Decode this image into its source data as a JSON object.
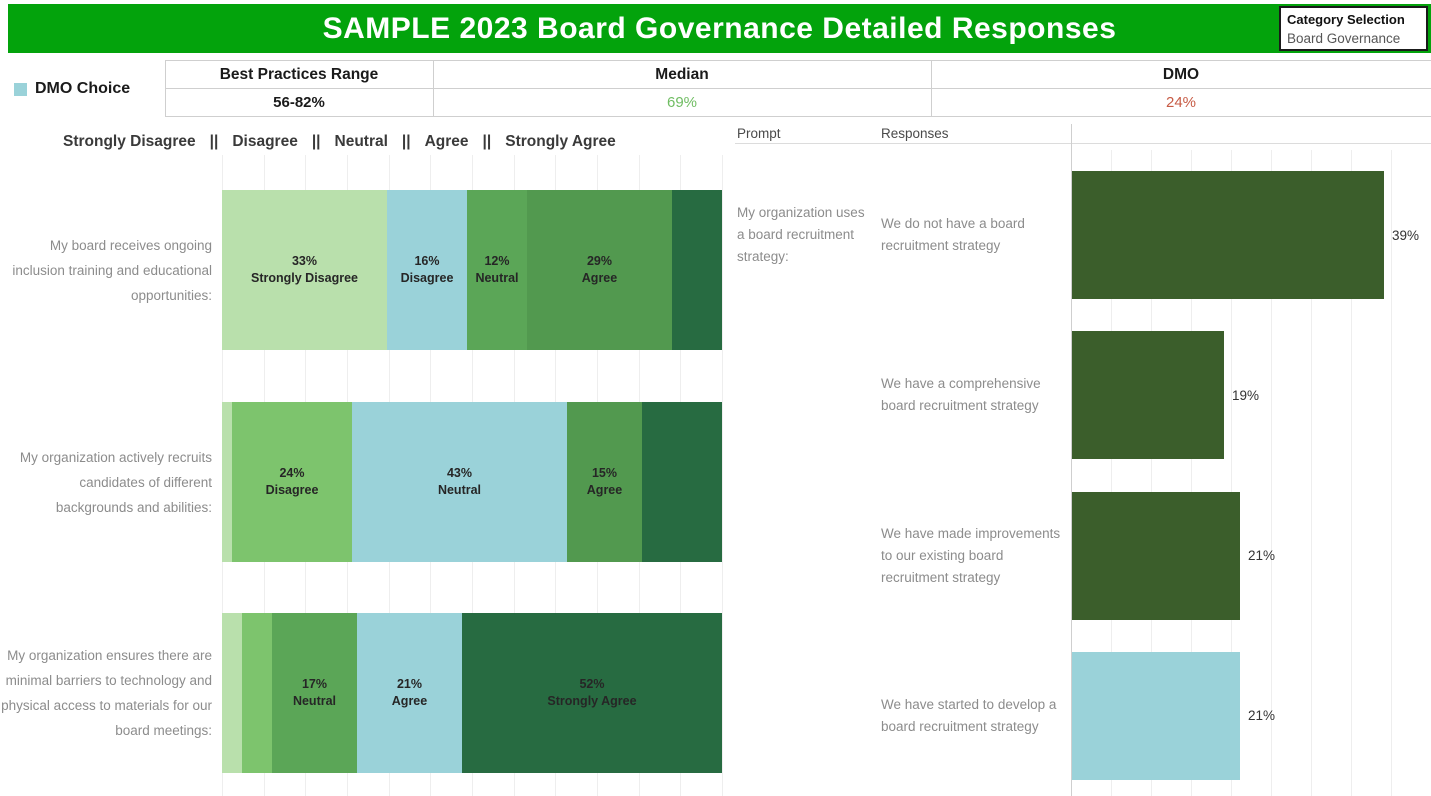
{
  "header": {
    "title": "SAMPLE 2023 Board Governance Detailed Responses",
    "bg_color": "#03a30c",
    "category_selector": {
      "label": "Category Selection",
      "value": "Board Governance"
    }
  },
  "legend": {
    "dmo_choice_label": "DMO Choice",
    "dmo_color": "#9ad2d9"
  },
  "summary_table": {
    "columns": [
      {
        "header": "Best Practices Range",
        "value": "56-82%",
        "value_color": "#1a1a1a",
        "value_bold": true
      },
      {
        "header": "Median",
        "value": "69%",
        "value_color": "#70bd63",
        "value_bold": false
      },
      {
        "header": "DMO",
        "value": "24%",
        "value_color": "#c75b45",
        "value_bold": false
      }
    ]
  },
  "likert_header": {
    "categories": [
      "Strongly Disagree",
      "Disagree",
      "Neutral",
      "Agree",
      "Strongly Agree"
    ],
    "separator": "||"
  },
  "right_header": {
    "prompt": "Prompt",
    "responses": "Responses"
  },
  "chart_data": [
    {
      "type": "bar",
      "subtype": "stacked-horizontal-likert",
      "categories": [
        "Strongly Disagree",
        "Disagree",
        "Neutral",
        "Agree",
        "Strongly Agree"
      ],
      "category_colors": {
        "Strongly Disagree": "#b9e0ac",
        "Disagree": "#7dc46d",
        "Neutral": "#5ba657",
        "Agree": "#52994f",
        "Strongly Agree": "#276b41"
      },
      "dmo_choice_color": "#9ad2d9",
      "note": "segments flagged dmo_choice are drawn in the DMO Choice blue; unlabeled segment values estimated from bar widths",
      "rows": [
        {
          "label": "My board receives ongoing inclusion training and educational opportunities:",
          "segments": [
            {
              "category": "Strongly Disagree",
              "value": 33,
              "labeled": true,
              "dmo_choice": false
            },
            {
              "category": "Disagree",
              "value": 16,
              "labeled": true,
              "dmo_choice": true
            },
            {
              "category": "Neutral",
              "value": 12,
              "labeled": true,
              "dmo_choice": false
            },
            {
              "category": "Agree",
              "value": 29,
              "labeled": true,
              "dmo_choice": false
            },
            {
              "category": "Strongly Agree",
              "value": 10,
              "labeled": false,
              "dmo_choice": false
            }
          ]
        },
        {
          "label": "My organization actively recruits candidates of different backgrounds and abilities:",
          "segments": [
            {
              "category": "Strongly Disagree",
              "value": 2,
              "labeled": false,
              "dmo_choice": false
            },
            {
              "category": "Disagree",
              "value": 24,
              "labeled": true,
              "dmo_choice": false
            },
            {
              "category": "Neutral",
              "value": 43,
              "labeled": true,
              "dmo_choice": true
            },
            {
              "category": "Agree",
              "value": 15,
              "labeled": true,
              "dmo_choice": false
            },
            {
              "category": "Strongly Agree",
              "value": 16,
              "labeled": false,
              "dmo_choice": false
            }
          ]
        },
        {
          "label": "My organization ensures there are minimal barriers to technology and physical access to materials for our board meetings:",
          "segments": [
            {
              "category": "Strongly Disagree",
              "value": 4,
              "labeled": false,
              "dmo_choice": false
            },
            {
              "category": "Disagree",
              "value": 6,
              "labeled": false,
              "dmo_choice": false
            },
            {
              "category": "Neutral",
              "value": 17,
              "labeled": true,
              "dmo_choice": false
            },
            {
              "category": "Agree",
              "value": 21,
              "labeled": true,
              "dmo_choice": true
            },
            {
              "category": "Strongly Agree",
              "value": 52,
              "labeled": true,
              "dmo_choice": false
            }
          ]
        }
      ]
    },
    {
      "type": "bar",
      "subtype": "horizontal",
      "prompt": "My organization uses a board recruitment strategy:",
      "bar_color": "#3b5e2b",
      "xlim": [
        0,
        45
      ],
      "gridline_step": 5,
      "rows": [
        {
          "response": "We do not have a board recruitment strategy",
          "value": 39,
          "label": "39%",
          "dmo_choice": false
        },
        {
          "response": "We have a comprehensive board recruitment strategy",
          "value": 19,
          "label": "19%",
          "dmo_choice": false
        },
        {
          "response": "We have made improvements to our existing board recruitment strategy",
          "value": 21,
          "label": "21%",
          "dmo_choice": false
        },
        {
          "response": "We have started to develop a board recruitment strategy",
          "value": 21,
          "label": "21%",
          "dmo_choice": true
        }
      ]
    }
  ]
}
